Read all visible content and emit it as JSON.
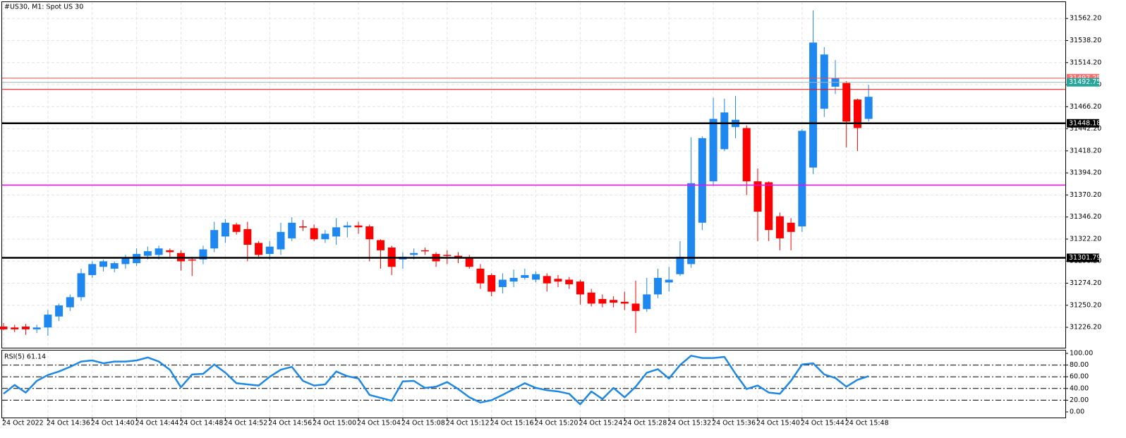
{
  "chart_data": [
    {
      "type": "candlestick",
      "title": "#US30, M1:  Spot US 30",
      "up_color": "#1e88f0",
      "down_color": "#ff0000",
      "grid": true,
      "categories": [
        "24 Oct 2022",
        null,
        null,
        null,
        "24 Oct 14:36",
        null,
        null,
        null,
        "24 Oct 14:40",
        null,
        null,
        null,
        "24 Oct 14:44",
        null,
        null,
        null,
        "24 Oct 14:48",
        null,
        null,
        null,
        "24 Oct 14:52",
        null,
        null,
        null,
        "24 Oct 14:56",
        null,
        null,
        null,
        "24 Oct 15:00",
        null,
        null,
        null,
        "24 Oct 15:04",
        null,
        null,
        null,
        "24 Oct 15:08",
        null,
        null,
        null,
        "24 Oct 15:12",
        null,
        null,
        null,
        "24 Oct 15:16",
        null,
        null,
        null,
        "24 Oct 15:20",
        null,
        null,
        null,
        "24 Oct 15:24",
        null,
        null,
        null,
        "24 Oct 15:28",
        null,
        null,
        null,
        "24 Oct 15:32",
        null,
        null,
        null,
        "24 Oct 15:36",
        null,
        null,
        null,
        "24 Oct 15:40",
        null,
        null,
        null,
        "24 Oct 15:44",
        null,
        null,
        null,
        "24 Oct 15:48",
        null,
        null
      ],
      "open": [
        31227,
        31226,
        31227,
        31224,
        31226,
        31238,
        31248,
        31259,
        31283,
        31292,
        31290,
        31295,
        31296,
        31304,
        31305,
        31310,
        31307,
        31300,
        31300,
        31312,
        31325,
        31338,
        31333,
        31318,
        31306,
        31311,
        31323,
        31336,
        31334,
        31322,
        31325,
        31335,
        31337,
        31336,
        31321,
        31313,
        31300,
        31305,
        31310,
        31306,
        31305,
        31304,
        31302,
        31290,
        31283,
        31270,
        31276,
        31280,
        31278,
        31282,
        31279,
        31278,
        31276,
        31264,
        31257,
        31256,
        31254,
        31252,
        31246,
        31262,
        31275,
        31284,
        31295,
        31340,
        31385,
        31420,
        31444,
        31443,
        31385,
        31384,
        31347,
        31340,
        31336,
        31400,
        31464,
        31488,
        31492,
        31474,
        31453
      ],
      "high": [
        31231,
        31229,
        31230,
        31229,
        31245,
        31252,
        31262,
        31290,
        31298,
        31300,
        31298,
        31305,
        31312,
        31314,
        31315,
        31312,
        31310,
        31303,
        31315,
        31341,
        31344,
        31340,
        31341,
        31320,
        31320,
        31340,
        31346,
        31343,
        31338,
        31332,
        31345,
        31341,
        31341,
        31338,
        31322,
        31315,
        31308,
        31312,
        31313,
        31308,
        31310,
        31308,
        31305,
        31295,
        31285,
        31285,
        31289,
        31290,
        31287,
        31285,
        31283,
        31281,
        31278,
        31268,
        31262,
        31260,
        31265,
        31277,
        31280,
        31290,
        31292,
        31320,
        31433,
        31434,
        31476,
        31475,
        31478,
        31446,
        31399,
        31385,
        31351,
        31345,
        31442,
        31571,
        31531,
        31517,
        31494,
        31475,
        31490
      ],
      "low": [
        31223,
        31221,
        31218,
        31220,
        31217,
        31233,
        31244,
        31255,
        31280,
        31287,
        31286,
        31290,
        31293,
        31300,
        31300,
        31303,
        31288,
        31282,
        31295,
        31308,
        31318,
        31327,
        31298,
        31303,
        31300,
        31305,
        31320,
        31331,
        31320,
        31318,
        31316,
        31324,
        31328,
        31298,
        31290,
        31283,
        31290,
        31300,
        31305,
        31292,
        31295,
        31296,
        31290,
        31268,
        31260,
        31263,
        31270,
        31278,
        31275,
        31265,
        31270,
        31268,
        31251,
        31249,
        31248,
        31248,
        31245,
        31220,
        31243,
        31258,
        31265,
        31282,
        31291,
        31332,
        31380,
        31418,
        31432,
        31370,
        31320,
        31320,
        31310,
        31310,
        31330,
        31393,
        31455,
        31480,
        31422,
        31418,
        31450
      ],
      "close": [
        31224,
        31224,
        31224,
        31226,
        31240,
        31250,
        31259,
        31285,
        31295,
        31298,
        31296,
        31302,
        31306,
        31309,
        31312,
        31308,
        31298,
        31299,
        31311,
        31332,
        31340,
        31330,
        31316,
        31305,
        31314,
        31330,
        31340,
        31335,
        31322,
        31328,
        31335,
        31337,
        31335,
        31322,
        31310,
        31292,
        31303,
        31307,
        31309,
        31298,
        31304,
        31302,
        31292,
        31274,
        31265,
        31278,
        31280,
        31283,
        31284,
        31274,
        31276,
        31273,
        31262,
        31252,
        31252,
        31253,
        31252,
        31244,
        31262,
        31280,
        31278,
        31303,
        31383,
        31432,
        31453,
        31460,
        31452,
        31385,
        31352,
        31332,
        31323,
        31330,
        31440,
        31536,
        31523,
        31497,
        31450,
        31443,
        31477
      ],
      "lines": [
        {
          "value": 31497.25,
          "color": "#e05050",
          "label_color": "#ff6b6b"
        },
        {
          "value": 31492.75,
          "color": "#9fb8b8",
          "label_color": "#26a69a"
        },
        {
          "value": 31485,
          "color": "#ff0000"
        },
        {
          "value": 31448.18,
          "color": "#000000",
          "label_color": "#000000"
        },
        {
          "value": 31381,
          "color": "#ff00ff"
        },
        {
          "value": 31301.79,
          "color": "#000000",
          "label_color": "#000000"
        }
      ],
      "ylim": [
        31204,
        31580
      ],
      "yticks": [
        {
          "value": 31226.2,
          "label": "31226.20"
        },
        {
          "value": 31250.2,
          "label": "31250.20"
        },
        {
          "value": 31274.2,
          "label": "31274.20"
        },
        {
          "value": 31298.2,
          "label": "31298.20"
        },
        {
          "value": 31322.2,
          "label": "31322.20"
        },
        {
          "value": 31346.2,
          "label": "31346.20"
        },
        {
          "value": 31370.2,
          "label": "31370.20"
        },
        {
          "value": 31394.2,
          "label": "31394.20"
        },
        {
          "value": 31418.2,
          "label": "31418.20"
        },
        {
          "value": 31442.2,
          "label": "31442.20"
        },
        {
          "value": 31466.2,
          "label": "31466.20"
        },
        {
          "value": 31490.2,
          "label": "31490.20"
        },
        {
          "value": 31514.2,
          "label": "31514.20"
        },
        {
          "value": 31538.2,
          "label": "31538.20"
        },
        {
          "value": 31562.2,
          "label": "31562.20"
        }
      ]
    },
    {
      "type": "line",
      "title": "RSI(5) 61.14",
      "color": "#1e88e5",
      "values": [
        31,
        46,
        33,
        53,
        63,
        69,
        77,
        86,
        88,
        83,
        86,
        86,
        88,
        93,
        86,
        72,
        42,
        64,
        65,
        81,
        67,
        49,
        47,
        45,
        60,
        72,
        77,
        53,
        45,
        47,
        69,
        61,
        57,
        29,
        24,
        19,
        52,
        53,
        41,
        43,
        51,
        39,
        25,
        16,
        20,
        29,
        39,
        49,
        41,
        37,
        35,
        31,
        13,
        35,
        22,
        41,
        25,
        43,
        67,
        73,
        57,
        80,
        96,
        92,
        92,
        94,
        65,
        39,
        45,
        33,
        31,
        53,
        81,
        83,
        64,
        58,
        43,
        55,
        61.14
      ],
      "ylim": [
        0,
        100
      ],
      "yticks": [
        {
          "value": 0,
          "label": "0.00"
        },
        {
          "value": 20,
          "label": "20.00"
        },
        {
          "value": 40,
          "label": "40.00"
        },
        {
          "value": 60,
          "label": "60.00"
        },
        {
          "value": 80,
          "label": "80.00"
        },
        {
          "value": 100,
          "label": "100.00"
        }
      ]
    }
  ]
}
